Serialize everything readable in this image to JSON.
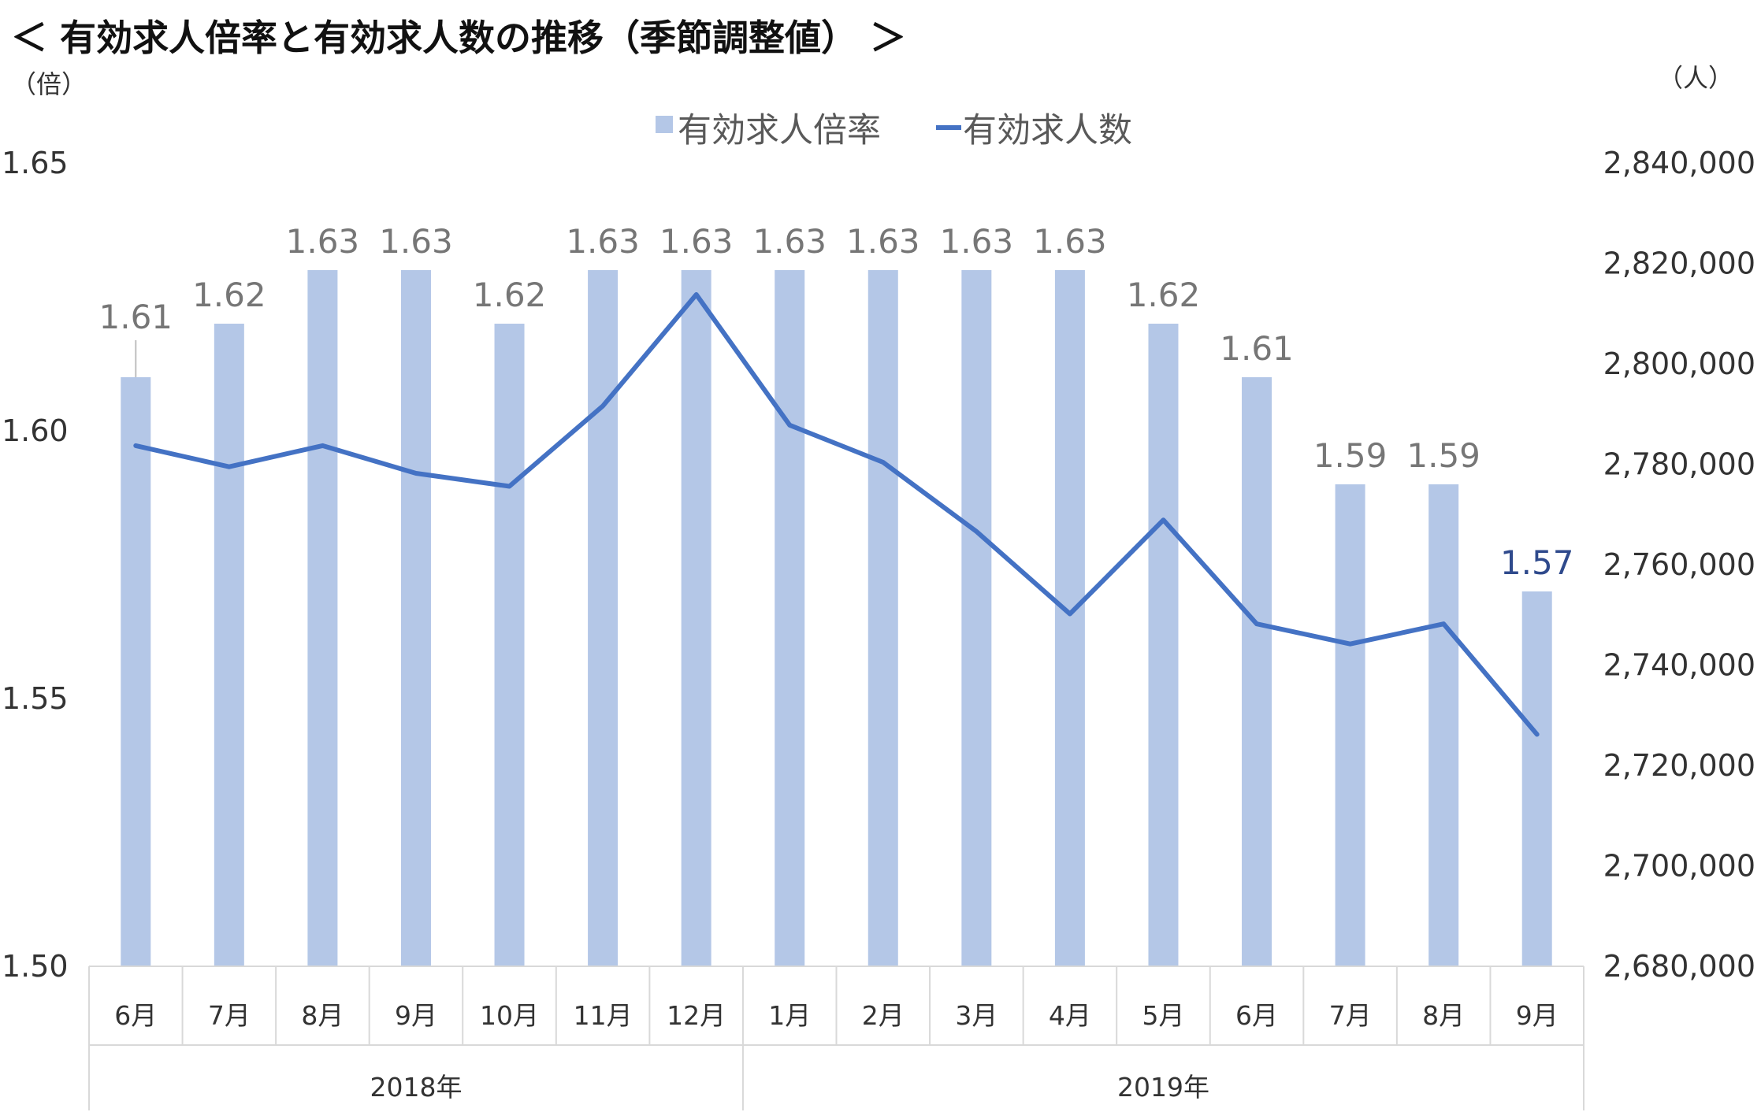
{
  "title": "＜ 有効求人倍率と有効求人数の推移（季節調整値） ＞",
  "left_unit": "（倍）",
  "right_unit": "（人）",
  "colors": {
    "bar": "#B4C7E7",
    "line": "#4472C4",
    "highlight_label": "#2F4A8C",
    "label": "#767676"
  },
  "chart_data": {
    "type": "bar+line",
    "categories": [
      "6月",
      "7月",
      "8月",
      "9月",
      "10月",
      "11月",
      "12月",
      "1月",
      "2月",
      "3月",
      "4月",
      "5月",
      "6月",
      "7月",
      "8月",
      "9月"
    ],
    "groups": [
      {
        "label": "2018年",
        "count": 7
      },
      {
        "label": "2019年",
        "count": 9
      }
    ],
    "series": [
      {
        "name": "有効求人倍率",
        "type": "bar",
        "axis": "left",
        "values": [
          1.61,
          1.62,
          1.63,
          1.63,
          1.62,
          1.63,
          1.63,
          1.63,
          1.63,
          1.63,
          1.63,
          1.62,
          1.61,
          1.59,
          1.59,
          1.57
        ],
        "labels": [
          "1.61",
          "1.62",
          "1.63",
          "1.63",
          "1.62",
          "1.63",
          "1.63",
          "1.63",
          "1.63",
          "1.63",
          "1.63",
          "1.62",
          "1.61",
          "1.59",
          "1.59",
          "1.57"
        ]
      },
      {
        "name": "有効求人数",
        "type": "line",
        "axis": "right",
        "values": [
          2783700,
          2779500,
          2783700,
          2778200,
          2775600,
          2791600,
          2813800,
          2787800,
          2780400,
          2766600,
          2750200,
          2768900,
          2748200,
          2744200,
          2748200,
          2726200
        ]
      }
    ],
    "left_axis": {
      "min": 1.5,
      "max": 1.65,
      "ticks": [
        "1.65",
        "1.60",
        "1.55",
        "1.50"
      ],
      "tick_values": [
        1.65,
        1.6,
        1.55,
        1.5
      ]
    },
    "right_axis": {
      "min": 2680000,
      "max": 2840000,
      "ticks": [
        "2,840,000",
        "2,820,000",
        "2,800,000",
        "2,780,000",
        "2,760,000",
        "2,740,000",
        "2,720,000",
        "2,700,000",
        "2,680,000"
      ],
      "tick_values": [
        2840000,
        2820000,
        2800000,
        2780000,
        2760000,
        2740000,
        2720000,
        2700000,
        2680000
      ]
    },
    "legend_position": "top-center",
    "grid": false
  }
}
